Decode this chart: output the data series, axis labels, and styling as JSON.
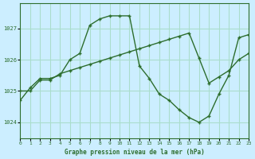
{
  "title": "Graphe pression niveau de la mer (hPa)",
  "bg_color": "#cceeff",
  "grid_color": "#aaddcc",
  "line_color": "#2d6e2d",
  "marker_color": "#2d6e2d",
  "xlim": [
    0,
    23
  ],
  "ylim": [
    1023.5,
    1027.8
  ],
  "yticks": [
    1024,
    1025,
    1026,
    1027
  ],
  "xticks": [
    0,
    1,
    2,
    3,
    4,
    5,
    6,
    7,
    8,
    9,
    10,
    11,
    12,
    13,
    14,
    15,
    16,
    17,
    18,
    19,
    20,
    21,
    22,
    23
  ],
  "series1_x": [
    0,
    1,
    2,
    3,
    4,
    5,
    6,
    7,
    8,
    9,
    10,
    11,
    12,
    13,
    14,
    15,
    16,
    17,
    18,
    19,
    20,
    21,
    22,
    23
  ],
  "series1_y": [
    1024.7,
    1025.1,
    1025.4,
    1025.4,
    1025.5,
    1026.0,
    1026.2,
    1027.1,
    1027.3,
    1027.4,
    1027.4,
    1027.4,
    1025.8,
    1025.4,
    1024.9,
    1024.7,
    1024.4,
    1024.15,
    1024.0,
    1024.2,
    1024.9,
    1025.5,
    1026.7,
    1026.8
  ],
  "series2_x": [
    0,
    1,
    2,
    3,
    4,
    5,
    6,
    7,
    8,
    9,
    10,
    11,
    12,
    13,
    14,
    15,
    16,
    17,
    18,
    19,
    20,
    21,
    22,
    23
  ],
  "series2_y": [
    1025.0,
    1025.0,
    1025.35,
    1025.35,
    1025.55,
    1025.65,
    1025.75,
    1025.85,
    1025.95,
    1026.05,
    1026.15,
    1026.25,
    1026.35,
    1026.45,
    1026.55,
    1026.65,
    1026.75,
    1026.85,
    1026.05,
    1025.25,
    1025.45,
    1025.65,
    1026.0,
    1026.2
  ]
}
